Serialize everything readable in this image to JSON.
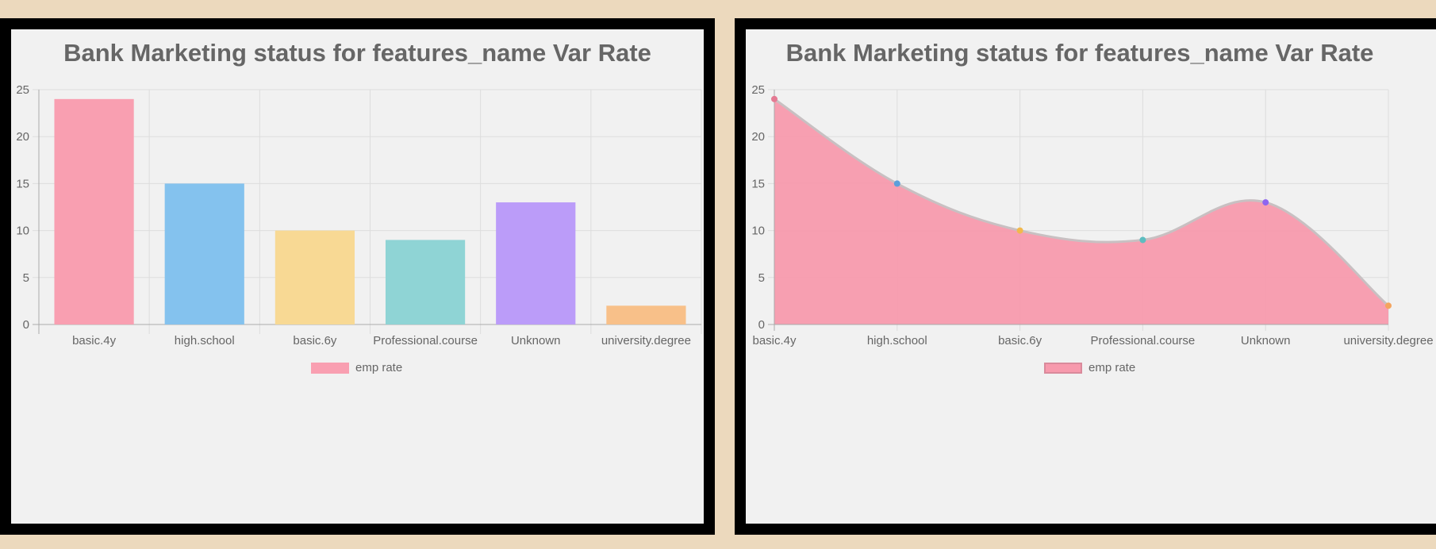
{
  "colors": {
    "page_background": "#ecd9bd",
    "frame": "#000000",
    "plot_background": "#f1f1f1",
    "grid": "#dddddd",
    "text": "#666666"
  },
  "chart_data": [
    {
      "type": "bar",
      "title": "Bank Marketing status for features_name Var Rate",
      "categories": [
        "basic.4y",
        "high.school",
        "basic.6y",
        "Professional.course",
        "Unknown",
        "university.degree"
      ],
      "series": [
        {
          "name": "emp rate",
          "values": [
            24,
            15,
            10,
            9,
            13,
            2
          ]
        }
      ],
      "bar_colors": [
        "#f99fb1",
        "#84c2ee",
        "#f8d994",
        "#8fd4d5",
        "#bb9cf9",
        "#f8c089"
      ],
      "xlabel": "",
      "ylabel": "",
      "ylim": [
        0,
        25
      ],
      "yticks": [
        0,
        5,
        10,
        15,
        20,
        25
      ],
      "grid": true,
      "legend": {
        "position": "bottom",
        "label": "emp rate",
        "color": "#f99fb1"
      }
    },
    {
      "type": "area",
      "title": "Bank Marketing status for features_name Var Rate",
      "categories": [
        "basic.4y",
        "high.school",
        "basic.6y",
        "Professional.course",
        "Unknown",
        "university.degree"
      ],
      "series": [
        {
          "name": "emp rate",
          "values": [
            24,
            15,
            10,
            9,
            13,
            2
          ]
        }
      ],
      "fill_color": "#f79aad",
      "point_colors": [
        "#e47a93",
        "#5c9fdb",
        "#f2b84c",
        "#5dbdc0",
        "#8e65f0",
        "#f4a45e"
      ],
      "xlabel": "",
      "ylabel": "",
      "ylim": [
        0,
        25
      ],
      "yticks": [
        0,
        5,
        10,
        15,
        20,
        25
      ],
      "grid": true,
      "legend": {
        "position": "bottom",
        "label": "emp rate",
        "color": "#f79aad"
      }
    }
  ]
}
